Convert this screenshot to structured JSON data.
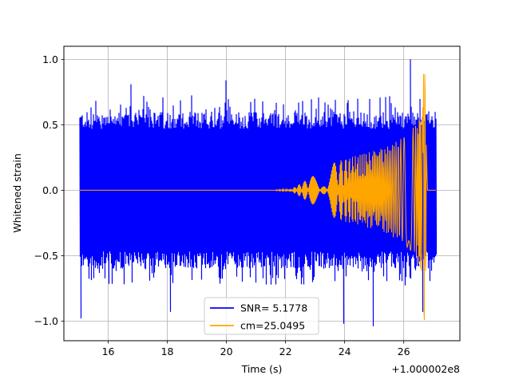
{
  "chart_data": {
    "type": "line",
    "title": "",
    "xlabel": "Time (s)",
    "ylabel": "Whitened strain",
    "x_offset_label": "+1.000002e8",
    "xlim": [
      14.5,
      27.9
    ],
    "ylim": [
      -1.15,
      1.1
    ],
    "x_ticks": [
      {
        "value": 16,
        "label": "16"
      },
      {
        "value": 18,
        "label": "18"
      },
      {
        "value": 20,
        "label": "20"
      },
      {
        "value": 22,
        "label": "22"
      },
      {
        "value": 24,
        "label": "24"
      },
      {
        "value": 26,
        "label": "26"
      }
    ],
    "y_ticks": [
      {
        "value": 1.0,
        "label": "1.0"
      },
      {
        "value": 0.5,
        "label": "0.5"
      },
      {
        "value": 0.0,
        "label": "0.0"
      },
      {
        "value": -0.5,
        "label": "−0.5"
      },
      {
        "value": -1.0,
        "label": "−1.0"
      }
    ],
    "grid": true,
    "legend_position": "bottom-center",
    "series": [
      {
        "name": "SNR= 5.1778",
        "color": "#0000ff",
        "kind": "whitened-noise",
        "x_range": [
          15.05,
          27.1
        ],
        "typical_amplitude": 0.6,
        "peak_values": [
          {
            "x": 15.08,
            "y": -0.98
          },
          {
            "x": 16.78,
            "y": 0.81
          },
          {
            "x": 18.08,
            "y": -0.93
          },
          {
            "x": 19.98,
            "y": 0.84
          },
          {
            "x": 23.95,
            "y": -1.02
          },
          {
            "x": 24.95,
            "y": -1.04
          },
          {
            "x": 26.22,
            "y": 1.0
          },
          {
            "x": 26.62,
            "y": -0.93
          }
        ]
      },
      {
        "name": "cm=25.0495",
        "color": "#ffa500",
        "kind": "chirp-template",
        "x_range": [
          15.05,
          27.1
        ],
        "merger_time": 26.73,
        "envelope": [
          {
            "x": 15.05,
            "y": 0.0
          },
          {
            "x": 21.5,
            "y": 0.0
          },
          {
            "x": 22.2,
            "y": 0.01
          },
          {
            "x": 23.0,
            "y": 0.12
          },
          {
            "x": 23.5,
            "y": 0.2
          },
          {
            "x": 24.0,
            "y": 0.24
          },
          {
            "x": 24.5,
            "y": 0.27
          },
          {
            "x": 25.0,
            "y": 0.3
          },
          {
            "x": 25.5,
            "y": 0.34
          },
          {
            "x": 26.0,
            "y": 0.41
          },
          {
            "x": 26.4,
            "y": 0.5
          },
          {
            "x": 26.6,
            "y": 0.62
          },
          {
            "x": 26.7,
            "y": 1.0
          },
          {
            "x": 26.8,
            "y": 0.0
          },
          {
            "x": 27.1,
            "y": 0.0
          }
        ]
      }
    ]
  }
}
